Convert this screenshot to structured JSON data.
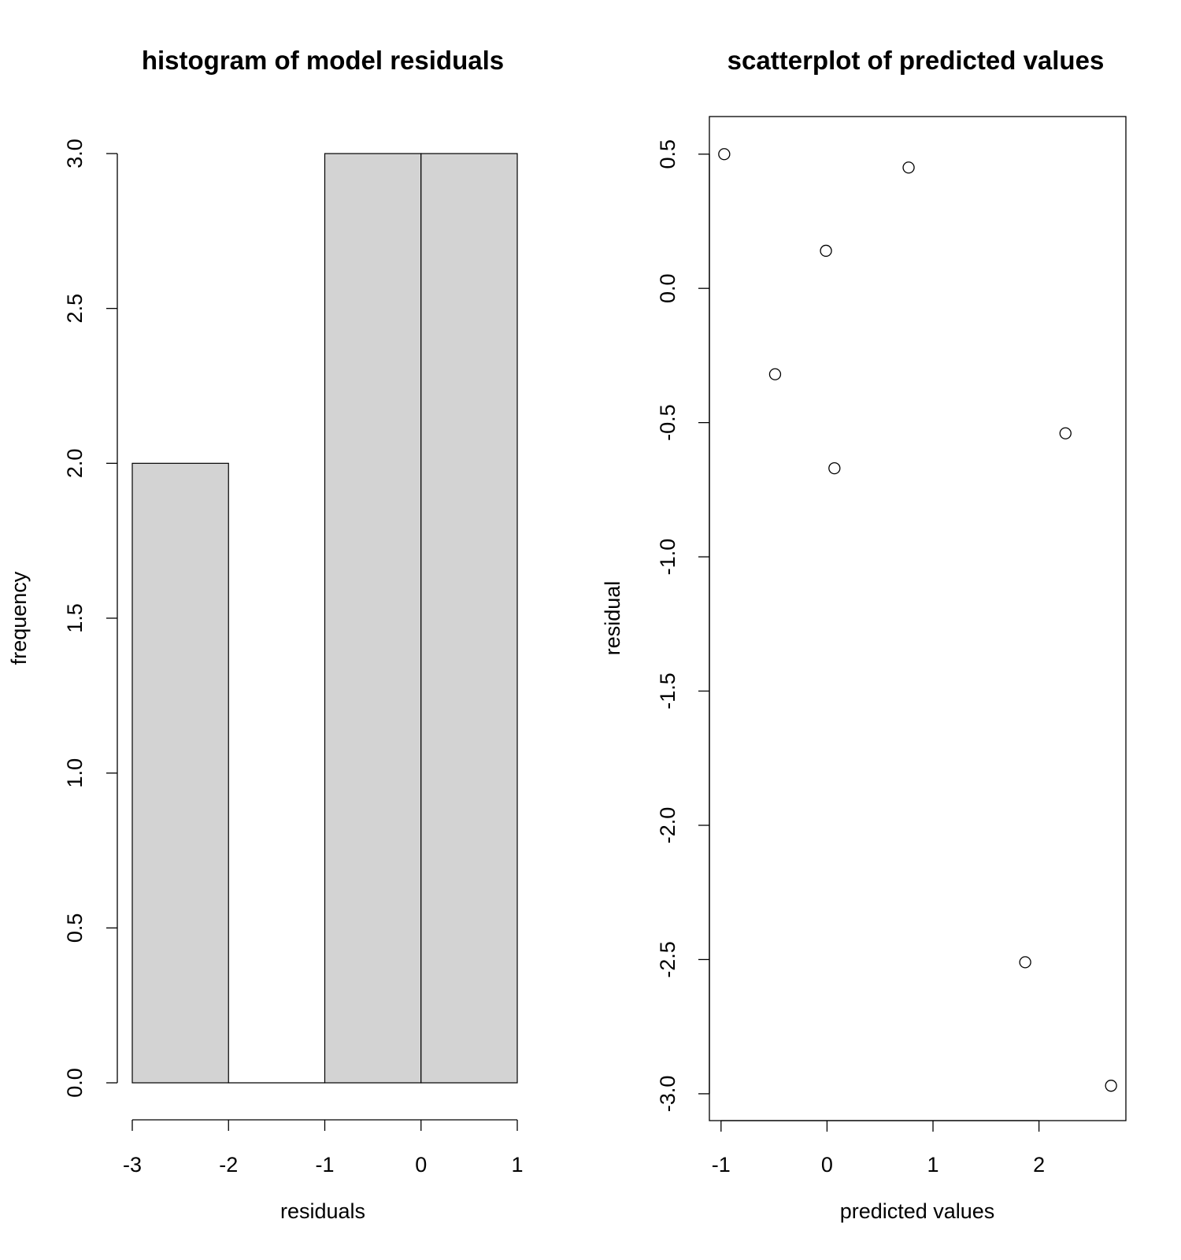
{
  "chart_data": [
    {
      "type": "bar",
      "title": "histogram of model residuals",
      "xlabel": "residuals",
      "ylabel": "frequency",
      "bins": [
        {
          "from": -3,
          "to": -2,
          "count": 2
        },
        {
          "from": -2,
          "to": -1,
          "count": 0
        },
        {
          "from": -1,
          "to": 0,
          "count": 3
        },
        {
          "from": 0,
          "to": 1,
          "count": 3
        }
      ],
      "xlim": [
        -3,
        1
      ],
      "ylim": [
        0,
        3
      ],
      "xticks": [
        -3,
        -2,
        -1,
        0,
        1
      ],
      "xtick_labels": [
        "-3",
        "-2",
        "-1",
        "0",
        "1"
      ],
      "yticks": [
        0,
        0.5,
        1,
        1.5,
        2,
        2.5,
        3
      ],
      "ytick_labels": [
        "0.0",
        "0.5",
        "1.0",
        "1.5",
        "2.0",
        "2.5",
        "3.0"
      ],
      "colors": {
        "bar_fill": "#d3d3d3",
        "bar_border": "#000000"
      },
      "grid": false
    },
    {
      "type": "scatter",
      "title": "scatterplot of predicted values",
      "xlabel": "predicted values",
      "ylabel": "residual",
      "points": [
        {
          "x": -0.97,
          "y": 0.5
        },
        {
          "x": 0.77,
          "y": 0.45
        },
        {
          "x": -0.01,
          "y": 0.14
        },
        {
          "x": -0.49,
          "y": -0.32
        },
        {
          "x": 2.25,
          "y": -0.54
        },
        {
          "x": 0.07,
          "y": -0.67
        },
        {
          "x": 1.87,
          "y": -2.51
        },
        {
          "x": 2.68,
          "y": -2.97
        }
      ],
      "xlim": [
        -1.11,
        2.82
      ],
      "ylim": [
        -3.1,
        0.64
      ],
      "xticks": [
        -1,
        0,
        1,
        2
      ],
      "xtick_labels": [
        "-1",
        "0",
        "1",
        "2"
      ],
      "yticks": [
        -3,
        -2.5,
        -2,
        -1.5,
        -1,
        -0.5,
        0,
        0.5
      ],
      "ytick_labels": [
        "-3.0",
        "-2.5",
        "-2.0",
        "-1.5",
        "-1.0",
        "-0.5",
        "0.0",
        "0.5"
      ],
      "marker": "open-circle",
      "grid": false
    }
  ]
}
